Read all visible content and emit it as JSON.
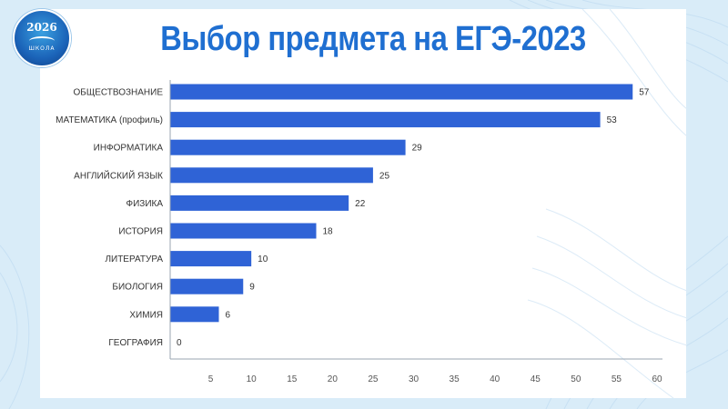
{
  "logo": {
    "year": "2026",
    "word": "ШКОЛА"
  },
  "colors": {
    "bar": "#2f63d6",
    "title": "#1f6fd1",
    "background": "#d9ecf8"
  },
  "chart_data": {
    "type": "bar",
    "orientation": "horizontal",
    "title": "Выбор предмета на ЕГЭ-2023",
    "categories": [
      "ОБЩЕСТВОЗНАНИЕ",
      "МАТЕМАТИКА (профиль)",
      "ИНФОРМАТИКА",
      "АНГЛИЙСКИЙ ЯЗЫК",
      "ФИЗИКА",
      "ИСТОРИЯ",
      "ЛИТЕРАТУРА",
      "БИОЛОГИЯ",
      "ХИМИЯ",
      "ГЕОГРАФИЯ"
    ],
    "values": [
      57,
      53,
      29,
      25,
      22,
      18,
      10,
      9,
      6,
      0
    ],
    "xlim": [
      0,
      60
    ],
    "xticks": [
      5,
      10,
      15,
      20,
      25,
      30,
      35,
      40,
      45,
      50,
      55,
      60
    ],
    "grid": false,
    "xlabel": "",
    "ylabel": ""
  }
}
